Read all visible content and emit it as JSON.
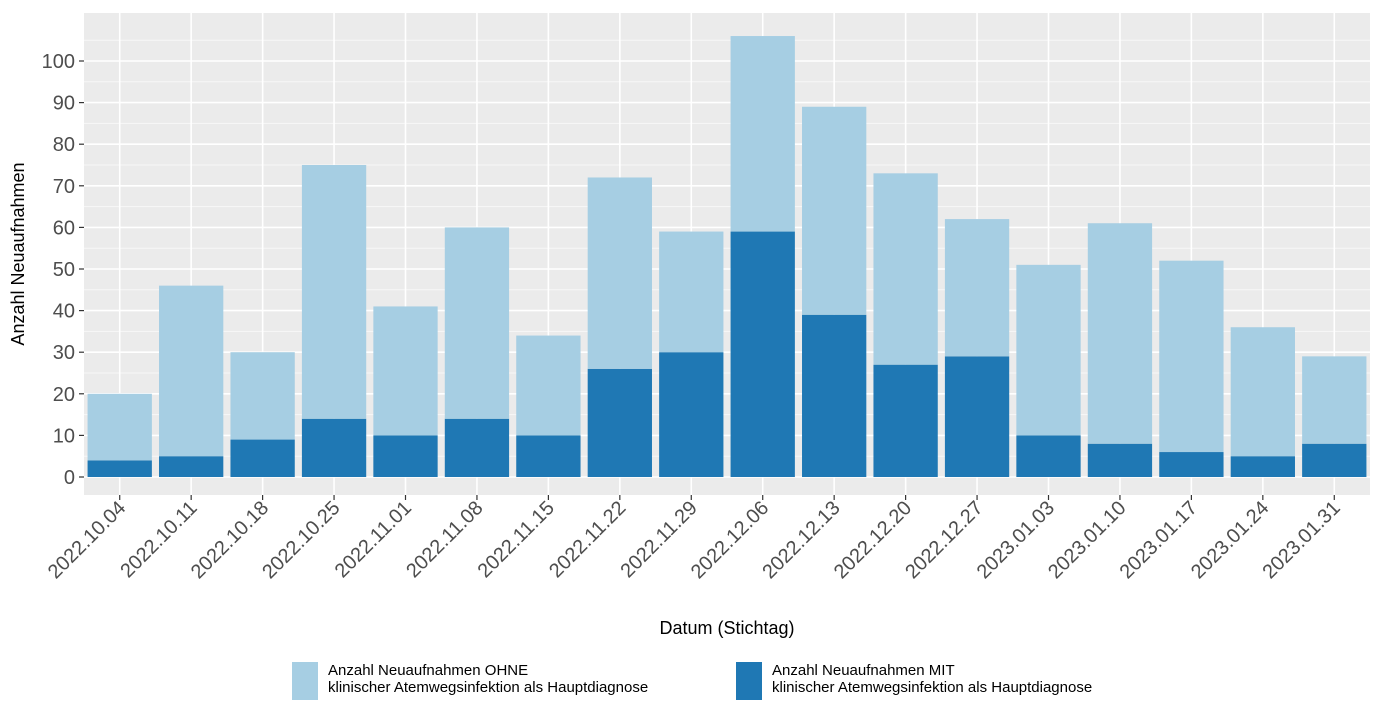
{
  "chart_data": {
    "type": "bar",
    "stacked": true,
    "xlabel": "Datum (Stichtag)",
    "ylabel": "Anzahl Neuaufnahmen",
    "ylim": [
      0,
      110
    ],
    "yticks": [
      0,
      10,
      20,
      30,
      40,
      50,
      60,
      70,
      80,
      90,
      100
    ],
    "grid": true,
    "legend_position": "bottom",
    "categories": [
      "2022.10.04",
      "2022.10.11",
      "2022.10.18",
      "2022.10.25",
      "2022.11.01",
      "2022.11.08",
      "2022.11.15",
      "2022.11.22",
      "2022.11.29",
      "2022.12.06",
      "2022.12.13",
      "2022.12.20",
      "2022.12.27",
      "2023.01.03",
      "2023.01.10",
      "2023.01.17",
      "2023.01.24",
      "2023.01.31"
    ],
    "series": [
      {
        "name": "Anzahl Neuaufnahmen MIT\nklinischer Atemwegsinfektion als Hauptdiagnose",
        "color": "#1f78b4",
        "values": [
          4,
          5,
          9,
          14,
          10,
          14,
          10,
          26,
          30,
          59,
          39,
          27,
          29,
          10,
          8,
          6,
          5,
          8
        ]
      },
      {
        "name": "Anzahl Neuaufnahmen OHNE\nklinischer Atemwegsinfektion als Hauptdiagnose",
        "color": "#a6cee3",
        "values": [
          16,
          41,
          21,
          61,
          31,
          46,
          24,
          46,
          29,
          47,
          50,
          46,
          33,
          41,
          53,
          46,
          31,
          21
        ]
      }
    ]
  }
}
